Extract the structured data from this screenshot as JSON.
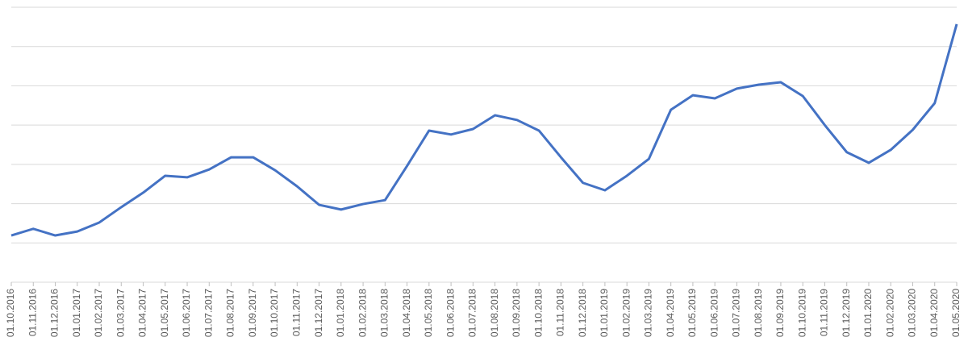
{
  "chart_data": {
    "type": "line",
    "categories": [
      "01.10.2016",
      "01.11.2016",
      "01.12.2016",
      "01.01.2017",
      "01.02.2017",
      "01.03.2017",
      "01.04.2017",
      "01.05.2017",
      "01.06.2017",
      "01.07.2017",
      "01.08.2017",
      "01.09.2017",
      "01.10.2017",
      "01.11.2017",
      "01.12.2017",
      "01.01.2018",
      "01.02.2018",
      "01.03.2018",
      "01.04.2018",
      "01.05.2018",
      "01.06.2018",
      "01.07.2018",
      "01.08.2018",
      "01.09.2018",
      "01.10.2018",
      "01.11.2018",
      "01.12.2018",
      "01.01.2019",
      "01.02.2019",
      "01.03.2019",
      "01.04.2019",
      "01.05.2019",
      "01.06.2019",
      "01.07.2019",
      "01.08.2019",
      "01.09.2019",
      "01.10.2019",
      "01.11.2019",
      "01.12.2019",
      "01.01.2020",
      "01.02.2020",
      "01.03.2020",
      "01.04.2020",
      "01.05.2020"
    ],
    "values": [
      1.19,
      1.36,
      1.19,
      1.29,
      1.52,
      1.91,
      2.28,
      2.71,
      2.67,
      2.87,
      3.18,
      3.18,
      2.85,
      2.44,
      1.97,
      1.85,
      1.99,
      2.09,
      2.96,
      3.86,
      3.76,
      3.9,
      4.25,
      4.13,
      3.86,
      3.18,
      2.53,
      2.34,
      2.71,
      3.14,
      4.39,
      4.76,
      4.68,
      4.93,
      5.03,
      5.09,
      4.74,
      4.0,
      3.31,
      3.04,
      3.37,
      3.88,
      4.56,
      6.57
    ],
    "color": "#4472c4",
    "ylim": [
      0,
      7
    ],
    "yticks": [
      0,
      1,
      2,
      3,
      4,
      5,
      6,
      7
    ],
    "grid": true
  }
}
